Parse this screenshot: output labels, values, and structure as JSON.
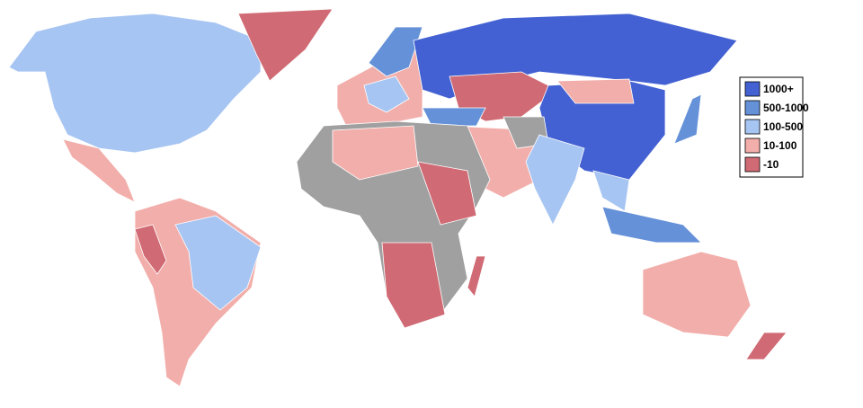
{
  "legend": {
    "items": [
      {
        "label": "1000+",
        "color": "#4361d2"
      },
      {
        "label": "500-1000",
        "color": "#6591d8"
      },
      {
        "label": "100-500",
        "color": "#a7c5f2"
      },
      {
        "label": "10-100",
        "color": "#f2aeaa"
      },
      {
        "label": "-10",
        "color": "#d06a74"
      }
    ]
  }
}
